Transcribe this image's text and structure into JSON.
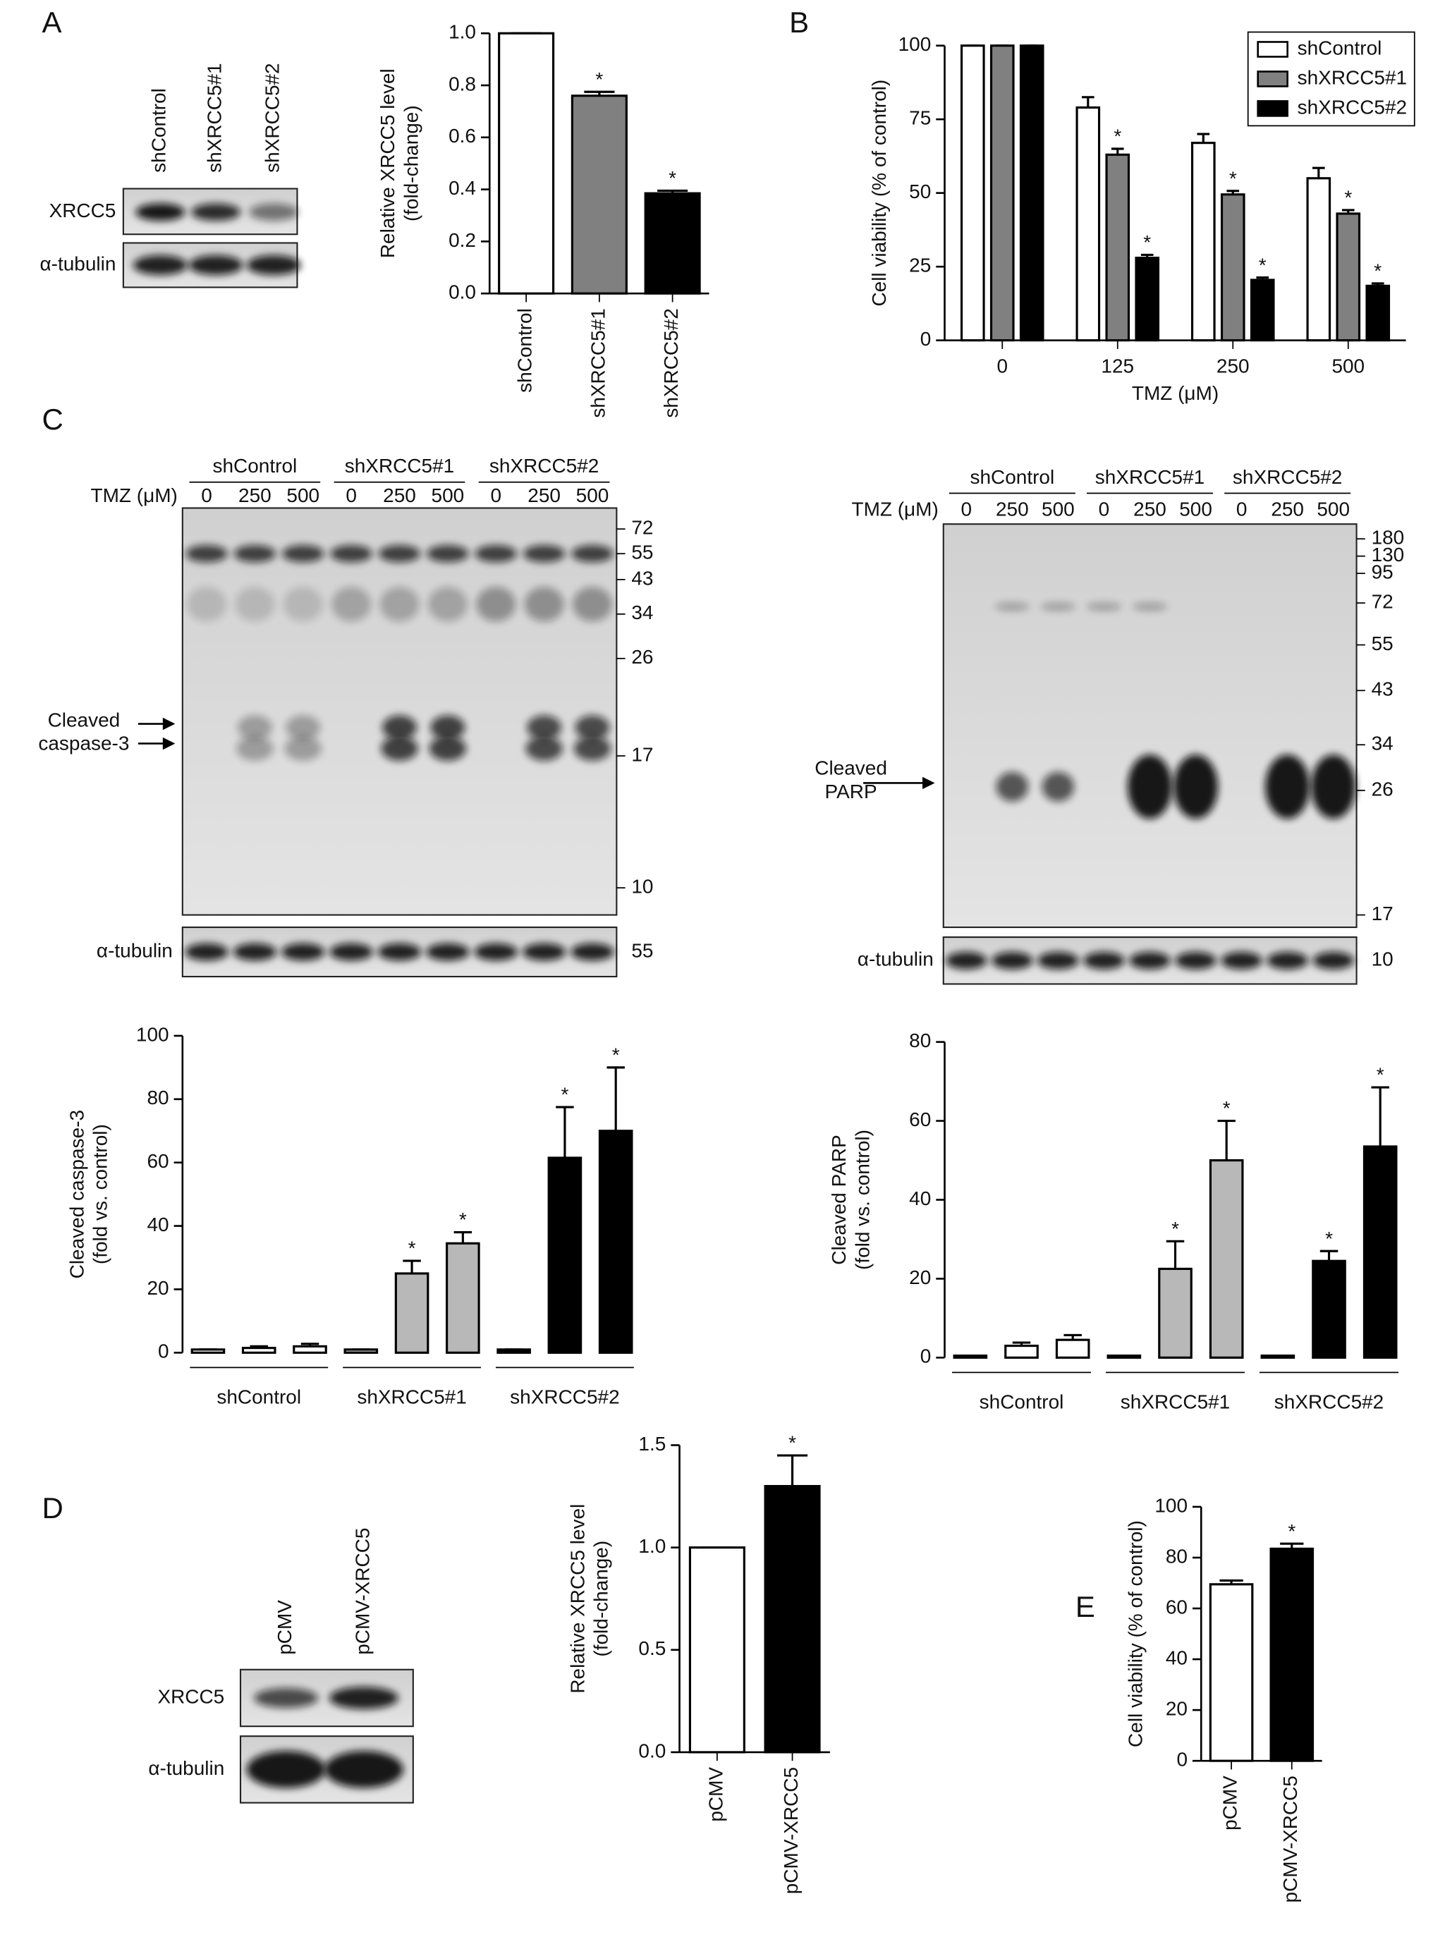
{
  "panel_labels": [
    "A",
    "B",
    "C",
    "D",
    "E"
  ],
  "blots": {
    "a": {
      "lanes": [
        "shControl",
        "shXRCC5#1",
        "shXRCC5#2"
      ],
      "rows": [
        "XRCC5",
        "α-tubulin"
      ]
    },
    "c_caspase": {
      "groups": [
        "shControl",
        "shXRCC5#1",
        "shXRCC5#2"
      ],
      "dose_label": "TMZ (μM)",
      "doses": [
        "0",
        "250",
        "500"
      ],
      "markers": [
        "72",
        "55",
        "43",
        "34",
        "26",
        "17",
        "10"
      ],
      "loading_marker": "55",
      "band_label": [
        "Cleaved",
        "caspase-3"
      ],
      "loading_label": "α-tubulin"
    },
    "c_parp": {
      "groups": [
        "shControl",
        "shXRCC5#1",
        "shXRCC5#2"
      ],
      "dose_label": "TMZ (μM)",
      "doses": [
        "0",
        "250",
        "500"
      ],
      "markers": [
        "180",
        "130",
        "95",
        "72",
        "55",
        "43",
        "34",
        "26",
        "17"
      ],
      "loading_marker": "10",
      "band_label": [
        "Cleaved",
        "PARP"
      ],
      "loading_label": "α-tubulin"
    },
    "d": {
      "lanes": [
        "pCMV",
        "pCMV-XRCC5"
      ],
      "rows": [
        "XRCC5",
        "α-tubulin"
      ]
    }
  },
  "chart_data": [
    {
      "type": "bar",
      "ylabel": [
        "Relative XRCC5 level",
        "(fold-change)"
      ],
      "categories": [
        "shControl",
        "shXRCC5#1",
        "shXRCC5#2"
      ],
      "values": [
        1.0,
        0.76,
        0.385
      ],
      "errors": [
        0,
        0.015,
        0.01
      ],
      "colors": [
        "#ffffff",
        "#808080",
        "#000000"
      ],
      "significance": [
        null,
        "*",
        "*"
      ],
      "ylim": [
        0,
        1
      ],
      "yticks": [
        {
          "value": 0,
          "label": "0.0"
        },
        0.2,
        0.4,
        0.6,
        0.8,
        {
          "value": 1,
          "label": "1.0"
        }
      ]
    },
    {
      "type": "bar",
      "ylabel": [
        "Cell viability (% of control)"
      ],
      "xlabel": "TMZ (μM)",
      "categories": [
        "0",
        "125",
        "250",
        "500"
      ],
      "legend": "top-right",
      "series": [
        {
          "name": "shControl",
          "color": "#ffffff",
          "values": [
            100,
            79,
            67,
            55
          ],
          "errors": [
            0,
            3.5,
            3,
            3.5
          ],
          "significance": [
            null,
            null,
            null,
            null
          ]
        },
        {
          "name": "shXRCC5#1",
          "color": "#808080",
          "values": [
            100,
            63,
            49.5,
            43
          ],
          "errors": [
            0,
            2,
            1.2,
            1.2
          ],
          "significance": [
            null,
            "*",
            "*",
            "*"
          ]
        },
        {
          "name": "shXRCC5#2",
          "color": "#000000",
          "values": [
            100,
            28,
            20.5,
            18.5
          ],
          "errors": [
            0,
            1,
            0.8,
            0.8
          ],
          "significance": [
            null,
            "*",
            "*",
            "*"
          ]
        }
      ],
      "ylim": [
        0,
        100
      ],
      "yticks": [
        0,
        25,
        50,
        75,
        100
      ]
    },
    {
      "type": "bar",
      "ylabel": [
        "Cleaved caspase-3",
        "(fold vs. control)"
      ],
      "categories": [
        null,
        null,
        null,
        null,
        null,
        null,
        null,
        null,
        null
      ],
      "groups": [
        "shControl",
        "shXRCC5#1",
        "shXRCC5#2"
      ],
      "values": [
        1,
        1.5,
        2,
        1,
        25,
        34.5,
        1,
        61.5,
        70
      ],
      "errors": [
        0,
        0.5,
        0.8,
        0,
        4,
        3.5,
        0,
        16,
        20
      ],
      "colors": [
        "#ffffff",
        "#ffffff",
        "#ffffff",
        "#b8b8b8",
        "#b8b8b8",
        "#b8b8b8",
        "#000000",
        "#000000",
        "#000000"
      ],
      "significance": [
        null,
        null,
        null,
        null,
        "*",
        "*",
        null,
        "*",
        "*"
      ],
      "ylim": [
        0,
        100
      ],
      "yticks": [
        0,
        20,
        40,
        60,
        80,
        100
      ]
    },
    {
      "type": "bar",
      "ylabel": [
        "Cleaved PARP",
        "(fold vs. control)"
      ],
      "categories": [
        null,
        null,
        null,
        null,
        null,
        null,
        null,
        null,
        null
      ],
      "groups": [
        "shControl",
        "shXRCC5#1",
        "shXRCC5#2"
      ],
      "values": [
        0.5,
        3,
        4.5,
        0.5,
        22.5,
        50,
        0.5,
        24.5,
        53.5
      ],
      "errors": [
        0,
        0.8,
        1.2,
        0,
        7,
        10,
        0,
        2.5,
        15
      ],
      "colors": [
        "#ffffff",
        "#ffffff",
        "#ffffff",
        "#b8b8b8",
        "#b8b8b8",
        "#b8b8b8",
        "#000000",
        "#000000",
        "#000000"
      ],
      "significance": [
        null,
        null,
        null,
        null,
        "*",
        "*",
        null,
        "*",
        "*"
      ],
      "ylim": [
        0,
        80
      ],
      "yticks": [
        0,
        20,
        40,
        60,
        80
      ]
    },
    {
      "type": "bar",
      "ylabel": [
        "Relative XRCC5 level",
        "(fold-change)"
      ],
      "categories": [
        "pCMV",
        "pCMV-XRCC5"
      ],
      "values": [
        1.0,
        1.3
      ],
      "errors": [
        0,
        0.15
      ],
      "colors": [
        "#ffffff",
        "#000000"
      ],
      "significance": [
        null,
        "*"
      ],
      "ylim": [
        0,
        1.5
      ],
      "yticks": [
        {
          "value": 0,
          "label": "0.0"
        },
        0.5,
        {
          "value": 1,
          "label": "1.0"
        },
        1.5
      ]
    },
    {
      "type": "bar",
      "ylabel": [
        "Cell viability (% of control)"
      ],
      "categories": [
        "pCMV",
        "pCMV-XRCC5"
      ],
      "values": [
        69.5,
        83.5
      ],
      "errors": [
        1.5,
        2
      ],
      "colors": [
        "#ffffff",
        "#000000"
      ],
      "significance": [
        null,
        "*"
      ],
      "ylim": [
        0,
        100
      ],
      "yticks": [
        0,
        20,
        40,
        60,
        80,
        100
      ]
    }
  ]
}
